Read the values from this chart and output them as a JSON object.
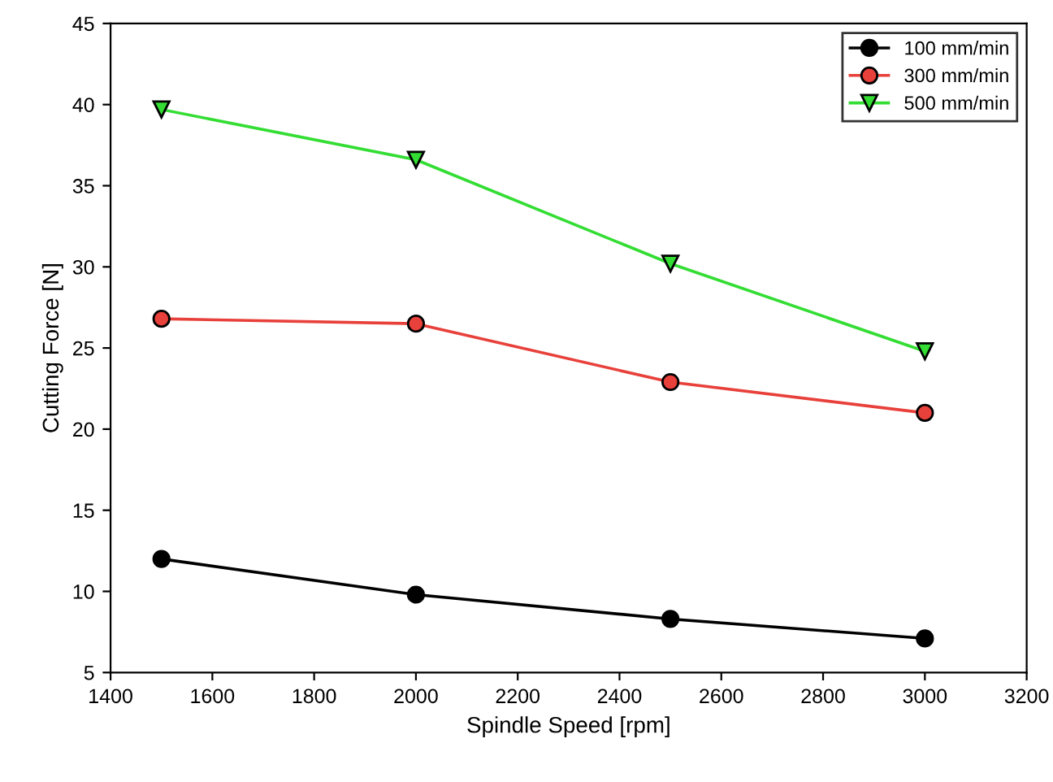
{
  "chart_data": {
    "type": "line",
    "xlabel": "Spindle Speed [rpm]",
    "ylabel": "Cutting Force [N]",
    "x": [
      1500,
      2000,
      2500,
      3000
    ],
    "series": [
      {
        "name": "100 mm/min",
        "color": "#000000",
        "marker": "circle",
        "values": [
          12.0,
          9.8,
          8.3,
          7.1
        ]
      },
      {
        "name": "300 mm/min",
        "color": "#e8403a",
        "marker": "circle",
        "values": [
          26.8,
          26.5,
          22.9,
          21.0
        ]
      },
      {
        "name": "500 mm/min",
        "color": "#33dd33",
        "marker": "triangle",
        "values": [
          39.7,
          36.6,
          30.2,
          24.8
        ]
      }
    ],
    "xlim": [
      1400,
      3200
    ],
    "xticks": [
      1400,
      1600,
      1800,
      2000,
      2200,
      2400,
      2600,
      2800,
      3000,
      3200
    ],
    "ylim": [
      5,
      45
    ],
    "yticks": [
      5,
      10,
      15,
      20,
      25,
      30,
      35,
      40,
      45
    ],
    "grid": false,
    "legend": "top right",
    "line_style": "solid"
  }
}
